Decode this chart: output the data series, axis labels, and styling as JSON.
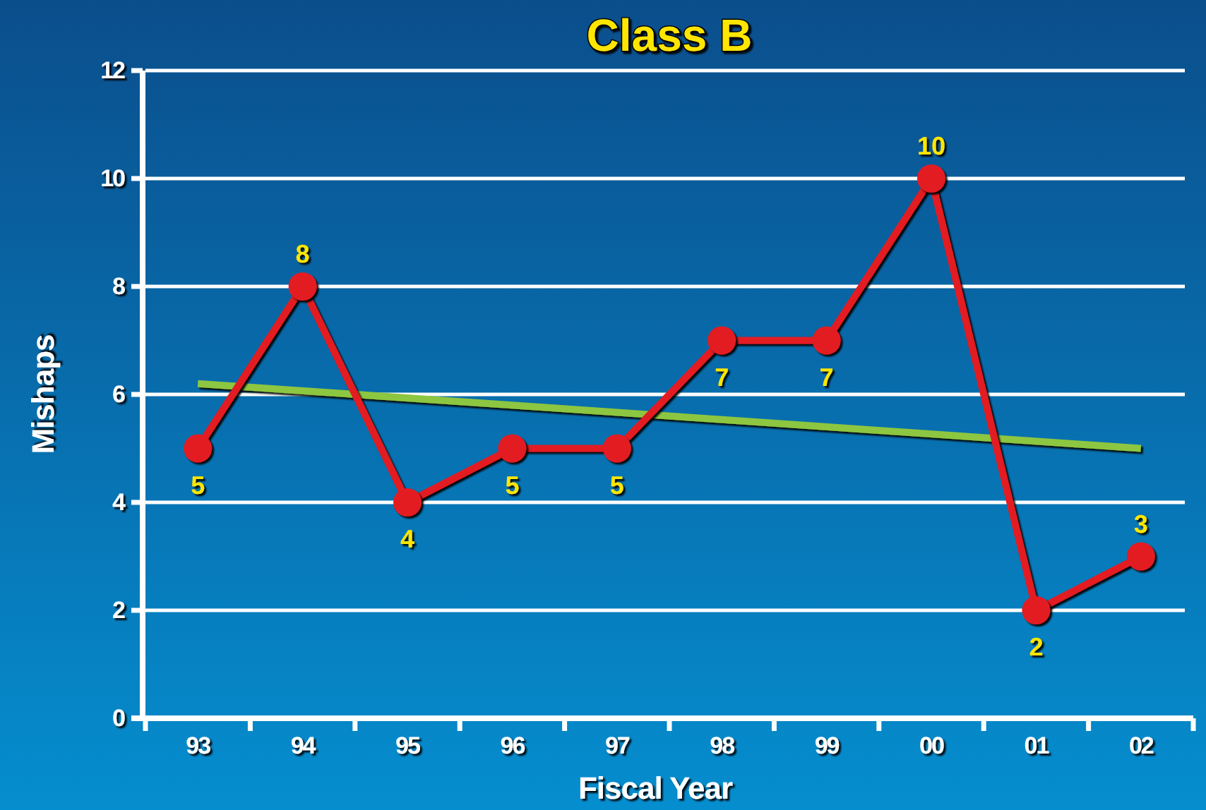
{
  "chart_data": {
    "type": "line",
    "title": "Class B",
    "xlabel": "Fiscal Year",
    "ylabel": "Mishaps",
    "categories": [
      "93",
      "94",
      "95",
      "96",
      "97",
      "98",
      "99",
      "00",
      "01",
      "02"
    ],
    "series": [
      {
        "color": "#8dc63f",
        "x": [
          "93",
          "02"
        ],
        "values": [
          6.2,
          5.0
        ],
        "marker": "none"
      },
      {
        "color": "#e31b23",
        "values": [
          5,
          8,
          4,
          5,
          5,
          7,
          7,
          10,
          2,
          3
        ],
        "marker": "circle",
        "data_labels": true
      }
    ],
    "ylim": [
      0,
      12
    ],
    "yticks": [
      0,
      2,
      4,
      6,
      8,
      10,
      12
    ],
    "grid": "y"
  }
}
